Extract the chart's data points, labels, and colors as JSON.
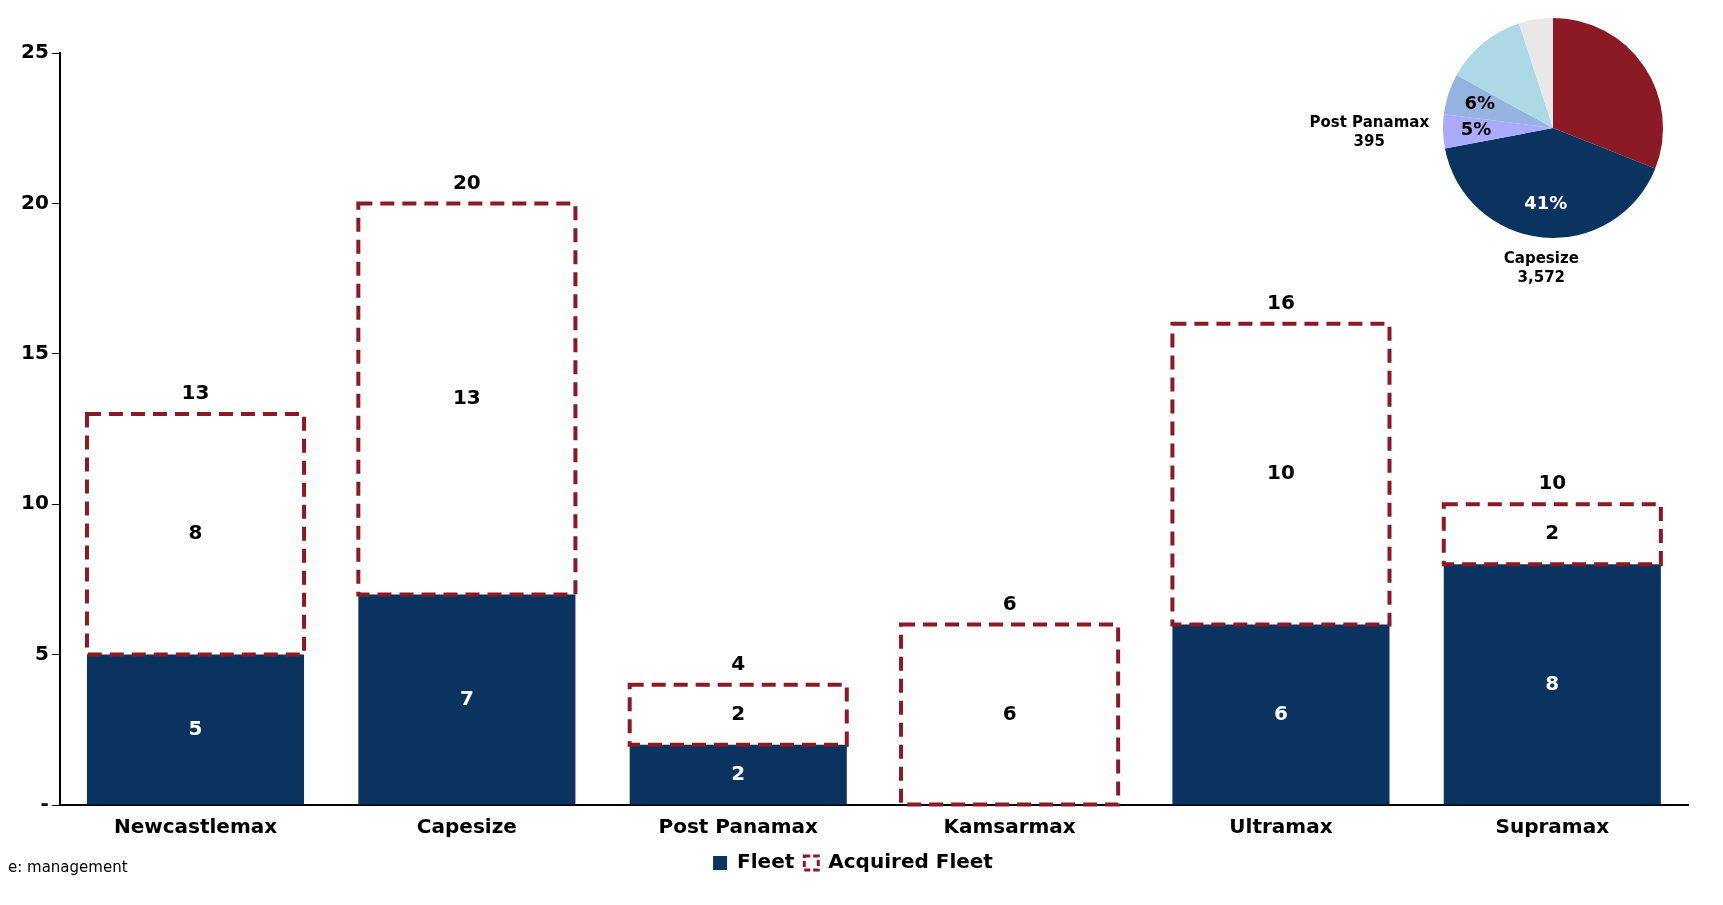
{
  "chart_data": [
    {
      "type": "bar",
      "stacked": true,
      "categories": [
        "Newcastlemax",
        "Capesize",
        "Post Panamax",
        "Kamsarmax",
        "Ultramax",
        "Supramax"
      ],
      "series": [
        {
          "name": "Fleet",
          "color": "#0b3360",
          "values": [
            5,
            7,
            2,
            0,
            6,
            8
          ],
          "value_labels": [
            "5",
            "7",
            "2",
            null,
            "6",
            "8"
          ]
        },
        {
          "name": "Acquired Fleet",
          "color": "#8b1a24",
          "line_style": "dashed",
          "values": [
            8,
            13,
            2,
            6,
            10,
            2
          ],
          "value_labels": [
            "8",
            "13",
            "2",
            "6",
            "10",
            "2"
          ]
        }
      ],
      "totals": [
        "13",
        "20",
        "4",
        "6",
        "16",
        "10"
      ],
      "ylim": [
        0,
        25
      ],
      "yticks": [
        {
          "value": 0,
          "label": "-"
        },
        5,
        10,
        15,
        20,
        25
      ],
      "grid": false,
      "legend": "bottom",
      "annotations": [
        "e: management"
      ]
    },
    {
      "type": "pie",
      "categories": [
        null,
        "Capesize",
        "Post Panamax",
        null,
        null,
        null
      ],
      "values": [
        31,
        41,
        5,
        6,
        12,
        5
      ],
      "colors": [
        "#8b1a24",
        "#0b3360",
        "#aaaaff",
        "#95b3e0",
        "#add8e6",
        "#e8e8e8"
      ],
      "value_labels": [
        null,
        "41%",
        "5%",
        "6%",
        null,
        null
      ],
      "annotations": [
        {
          "text": "3,572",
          "x": "Capesize"
        },
        {
          "text": "395",
          "x": "Post Panamax"
        }
      ]
    }
  ]
}
